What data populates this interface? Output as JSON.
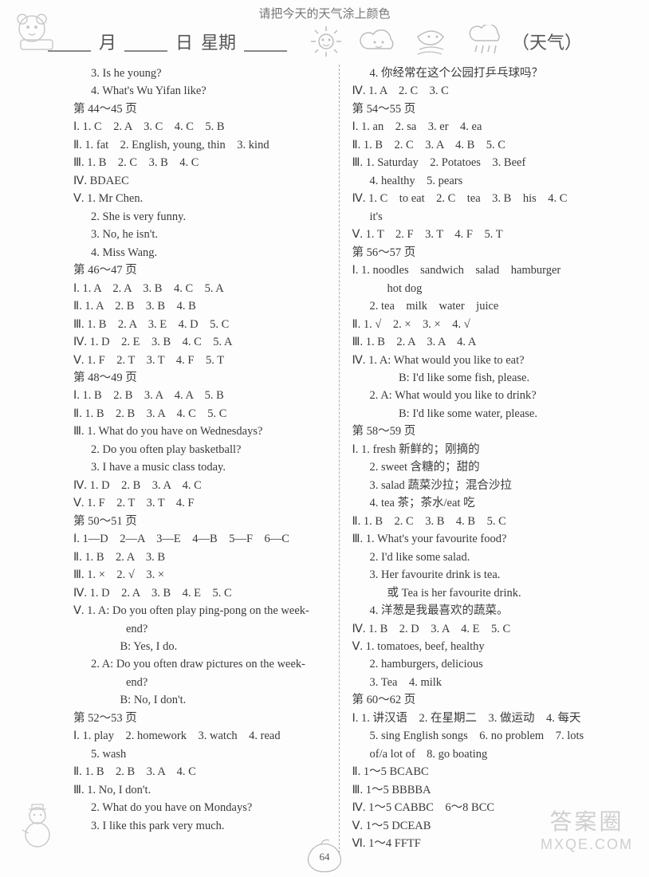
{
  "top_hint": "请把今天的天气涂上颜色",
  "header": {
    "month": "月",
    "day": "日",
    "weekday": "星期",
    "weather_label": "（天气）"
  },
  "page_number": "64",
  "watermark": {
    "line1": "答案圈",
    "line2": "MXQE.COM"
  },
  "left": [
    {
      "cls": "indent1b",
      "t": "3. Is he young?"
    },
    {
      "cls": "indent1b",
      "t": "4. What's Wu Yifan like?"
    },
    {
      "cls": "",
      "t": "第 44～45 页"
    },
    {
      "cls": "indent1",
      "t": "Ⅰ. 1. C　2. A　3. C　4. C　5. B"
    },
    {
      "cls": "indent1",
      "t": "Ⅱ. 1. fat　2. English, young, thin　3. kind"
    },
    {
      "cls": "indent1",
      "t": "Ⅲ. 1. B　2. C　3. B　4. C"
    },
    {
      "cls": "indent1",
      "t": "Ⅳ. BDAEC"
    },
    {
      "cls": "indent1",
      "t": "Ⅴ. 1. Mr Chen."
    },
    {
      "cls": "indent1b",
      "t": "2. She is very funny."
    },
    {
      "cls": "indent1b",
      "t": "3. No, he isn't."
    },
    {
      "cls": "indent1b",
      "t": "4. Miss Wang."
    },
    {
      "cls": "",
      "t": "第 46～47 页"
    },
    {
      "cls": "indent1",
      "t": "Ⅰ. 1. A　2. A　3. B　4. C　5. A"
    },
    {
      "cls": "indent1",
      "t": "Ⅱ. 1. A　2. B　3. B　4. B"
    },
    {
      "cls": "indent1",
      "t": "Ⅲ. 1. B　2. A　3. E　4. D　5. C"
    },
    {
      "cls": "indent1",
      "t": "Ⅳ. 1. D　2. E　3. B　4. C　5. A"
    },
    {
      "cls": "indent1",
      "t": "Ⅴ. 1. F　2. T　3. T　4. F　5. T"
    },
    {
      "cls": "",
      "t": "第 48～49 页"
    },
    {
      "cls": "indent1",
      "t": "Ⅰ. 1. B　2. B　3. A　4. A　5. B"
    },
    {
      "cls": "indent1",
      "t": "Ⅱ. 1. B　2. B　3. A　4. C　5. C"
    },
    {
      "cls": "indent1",
      "t": "Ⅲ. 1. What do you have on Wednesdays?"
    },
    {
      "cls": "indent1b",
      "t": "2. Do you often play basketball?"
    },
    {
      "cls": "indent1b",
      "t": "3. I have a music class today."
    },
    {
      "cls": "indent1",
      "t": "Ⅳ. 1. D　2. B　3. A　4. C"
    },
    {
      "cls": "indent1",
      "t": "Ⅴ. 1. F　2. T　3. T　4. F"
    },
    {
      "cls": "",
      "t": "第 50～51 页"
    },
    {
      "cls": "indent1",
      "t": "Ⅰ. 1—D　2—A　3—E　4—B　5—F　6—C"
    },
    {
      "cls": "indent1",
      "t": "Ⅱ. 1. B　2. A　3. B"
    },
    {
      "cls": "indent1",
      "t": "Ⅲ. 1. ×　2. √　3. ×"
    },
    {
      "cls": "indent1",
      "t": "Ⅳ. 1. D　2. A　3. B　4. E　5. C"
    },
    {
      "cls": "indent1",
      "t": "Ⅴ. 1. A: Do you often play ping-pong on the week-"
    },
    {
      "cls": "indent3",
      "t": "end?"
    },
    {
      "cls": "indent2",
      "t": "　B: Yes, I do."
    },
    {
      "cls": "indent1b",
      "t": "2. A: Do you often draw pictures on the week-"
    },
    {
      "cls": "indent3",
      "t": "end?"
    },
    {
      "cls": "indent2",
      "t": "　B: No, I don't."
    },
    {
      "cls": "",
      "t": "第 52～53 页"
    },
    {
      "cls": "indent1",
      "t": "Ⅰ. 1. play　2. homework　3. watch　4. read"
    },
    {
      "cls": "indent1b",
      "t": "5. wash"
    },
    {
      "cls": "indent1",
      "t": "Ⅱ. 1. B　2. B　3. A　4. C"
    },
    {
      "cls": "indent1",
      "t": "Ⅲ. 1. No, I don't."
    },
    {
      "cls": "indent1b",
      "t": "2. What do you have on Mondays?"
    },
    {
      "cls": "indent1b",
      "t": "3. I like this park very much."
    }
  ],
  "right": [
    {
      "cls": "indent1b",
      "t": "4. 你经常在这个公园打乒乓球吗？"
    },
    {
      "cls": "indent1",
      "t": "Ⅳ. 1. A　2. C　3. C"
    },
    {
      "cls": "",
      "t": "第 54～55 页"
    },
    {
      "cls": "indent1",
      "t": "Ⅰ. 1. an　2. sa　3. er　4. ea"
    },
    {
      "cls": "indent1",
      "t": "Ⅱ. 1. B　2. C　3. A　4. B　5. C"
    },
    {
      "cls": "indent1",
      "t": "Ⅲ. 1. Saturday　2. Potatoes　3. Beef"
    },
    {
      "cls": "indent1b",
      "t": "4. healthy　5. pears"
    },
    {
      "cls": "indent1",
      "t": "Ⅳ. 1. C　to eat　2. C　tea　3. B　his　4. C"
    },
    {
      "cls": "indent1b",
      "t": "it's"
    },
    {
      "cls": "indent1",
      "t": "Ⅴ. 1. T　2. F　3. T　4. F　5. T"
    },
    {
      "cls": "",
      "t": "第 56～57 页"
    },
    {
      "cls": "indent1",
      "t": "Ⅰ. 1. noodles　sandwich　salad　hamburger"
    },
    {
      "cls": "indent2",
      "t": "hot dog"
    },
    {
      "cls": "indent1b",
      "t": "2. tea　milk　water　juice"
    },
    {
      "cls": "indent1",
      "t": "Ⅱ. 1. √　2. ×　3. ×　4. √"
    },
    {
      "cls": "indent1",
      "t": "Ⅲ. 1. B　2. A　3. A　4. A"
    },
    {
      "cls": "indent1",
      "t": "Ⅳ. 1. A: What would you like to eat?"
    },
    {
      "cls": "indent2",
      "t": "　B: I'd like some fish, please."
    },
    {
      "cls": "indent1b",
      "t": "2. A: What would you like to drink?"
    },
    {
      "cls": "indent2",
      "t": "　B: I'd like some water, please."
    },
    {
      "cls": "",
      "t": "第 58～59 页"
    },
    {
      "cls": "indent1",
      "t": "Ⅰ. 1. fresh 新鲜的；刚摘的"
    },
    {
      "cls": "indent1b",
      "t": "2. sweet 含糖的；甜的"
    },
    {
      "cls": "indent1b",
      "t": "3. salad 蔬菜沙拉；混合沙拉"
    },
    {
      "cls": "indent1b",
      "t": "4. tea 茶；茶水/eat 吃"
    },
    {
      "cls": "indent1",
      "t": "Ⅱ. 1. B　2. C　3. B　4. B　5. C"
    },
    {
      "cls": "indent1",
      "t": "Ⅲ. 1. What's your favourite food?"
    },
    {
      "cls": "indent1b",
      "t": "2. I'd like some salad."
    },
    {
      "cls": "indent1b",
      "t": "3. Her favourite drink is tea."
    },
    {
      "cls": "indent2",
      "t": "或 Tea is her favourite drink."
    },
    {
      "cls": "indent1b",
      "t": "4. 洋葱是我最喜欢的蔬菜。"
    },
    {
      "cls": "indent1",
      "t": "Ⅳ. 1. B　2. D　3. A　4. E　5. C"
    },
    {
      "cls": "indent1",
      "t": "Ⅴ. 1. tomatoes, beef, healthy"
    },
    {
      "cls": "indent1b",
      "t": "2. hamburgers, delicious"
    },
    {
      "cls": "indent1b",
      "t": "3. Tea　4. milk"
    },
    {
      "cls": "",
      "t": "第 60～62 页"
    },
    {
      "cls": "indent1",
      "t": "Ⅰ. 1. 讲汉语　2. 在星期二　3. 做运动　4. 每天"
    },
    {
      "cls": "indent1b",
      "t": "5. sing English songs　6. no problem　7. lots"
    },
    {
      "cls": "indent1b",
      "t": "of/a lot of　8. go boating"
    },
    {
      "cls": "indent1",
      "t": "Ⅱ. 1～5 BCABC"
    },
    {
      "cls": "indent1",
      "t": "Ⅲ. 1～5 BBBBA"
    },
    {
      "cls": "indent1",
      "t": "Ⅳ. 1～5 CABBC　6～8 BCC"
    },
    {
      "cls": "indent1",
      "t": "Ⅴ. 1～5 DCEAB"
    },
    {
      "cls": "indent1",
      "t": "Ⅵ. 1～4 FFTF"
    }
  ]
}
